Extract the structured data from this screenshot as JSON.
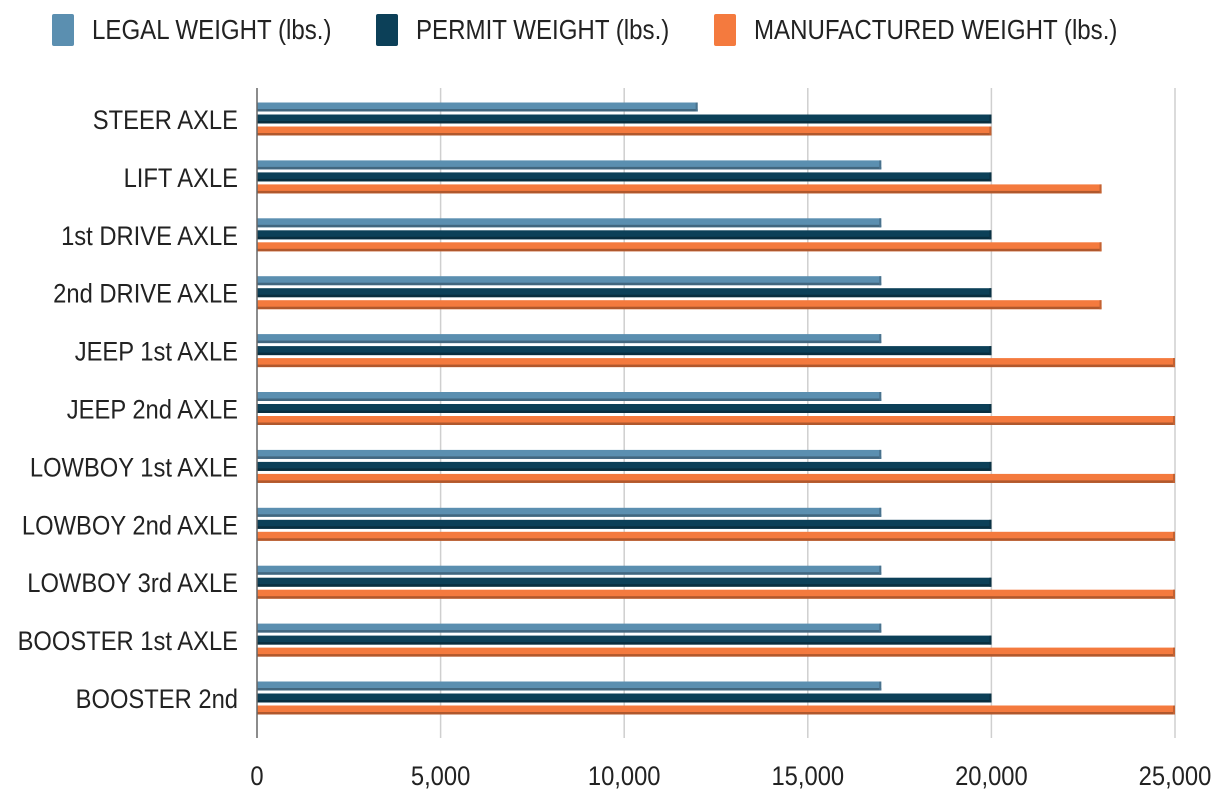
{
  "chart_data": {
    "type": "bar",
    "orientation": "horizontal",
    "categories": [
      "STEER AXLE",
      "LIFT AXLE",
      "1st DRIVE AXLE",
      "2nd DRIVE AXLE",
      "JEEP 1st AXLE",
      "JEEP 2nd AXLE",
      "LOWBOY 1st AXLE",
      "LOWBOY 2nd AXLE",
      "LOWBOY 3rd AXLE",
      "BOOSTER 1st AXLE",
      "BOOSTER 2nd"
    ],
    "series": [
      {
        "name": "LEGAL WEIGHT (lbs.)",
        "color": "#5b8fb0",
        "values": [
          12000,
          17000,
          17000,
          17000,
          17000,
          17000,
          17000,
          17000,
          17000,
          17000,
          17000
        ]
      },
      {
        "name": "PERMIT WEIGHT (lbs.)",
        "color": "#0c4058",
        "values": [
          20000,
          20000,
          20000,
          20000,
          20000,
          20000,
          20000,
          20000,
          20000,
          20000,
          20000
        ]
      },
      {
        "name": "MANUFACTURED WEIGHT (lbs.)",
        "color": "#f47a3e",
        "values": [
          20000,
          23000,
          23000,
          23000,
          25000,
          25000,
          25000,
          25000,
          25000,
          25000,
          25000
        ]
      }
    ],
    "xlim": [
      0,
      25000
    ],
    "xticks": [
      0,
      5000,
      10000,
      15000,
      20000,
      25000
    ],
    "xtick_labels": [
      "0",
      "5,000",
      "10,000",
      "15,000",
      "20,000",
      "25,000"
    ],
    "grid": true,
    "legend_position": "top"
  }
}
